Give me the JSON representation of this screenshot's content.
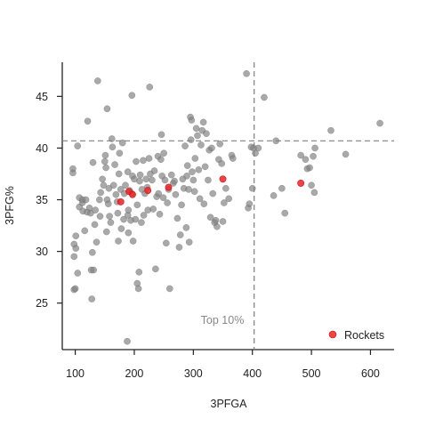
{
  "chart_data": {
    "type": "scatter",
    "xlabel": "3PFGA",
    "ylabel": "3PFG%",
    "xlim": [
      78,
      640
    ],
    "ylim": [
      20.5,
      48.3
    ],
    "xticks": [
      100,
      200,
      300,
      400,
      500,
      600
    ],
    "yticks": [
      25,
      30,
      35,
      40,
      45
    ],
    "grid": false,
    "reference_lines": {
      "x": 403,
      "y": 40.7
    },
    "annotation": "Top 10%",
    "legend": {
      "position": "bottom-right",
      "entries": [
        "Rockets"
      ]
    },
    "colors": {
      "others": "#808080",
      "highlight": "#ee2222",
      "refline": "#808080"
    },
    "series": [
      {
        "values": [
          [
            96,
            37.6
          ],
          [
            96,
            38.0
          ],
          [
            98,
            30.7
          ],
          [
            98,
            29.5
          ],
          [
            98,
            26.3
          ],
          [
            100,
            26.4
          ],
          [
            101,
            30.3
          ],
          [
            101,
            31.5
          ],
          [
            104,
            27.9
          ],
          [
            104,
            40.2
          ],
          [
            107,
            34.3
          ],
          [
            107,
            35.2
          ],
          [
            112,
            34.7
          ],
          [
            112,
            35.0
          ],
          [
            113,
            33.9
          ],
          [
            116,
            32.0
          ],
          [
            118,
            35.0
          ],
          [
            120,
            33.8
          ],
          [
            121,
            42.6
          ],
          [
            124,
            34.2
          ],
          [
            126,
            33.7
          ],
          [
            127,
            28.2
          ],
          [
            128,
            25.4
          ],
          [
            129,
            29.9
          ],
          [
            130,
            38.6
          ],
          [
            131,
            28.2
          ],
          [
            133,
            32.6
          ],
          [
            134,
            34.0
          ],
          [
            136,
            30.9
          ],
          [
            138,
            46.5
          ],
          [
            141,
            35.0
          ],
          [
            142,
            33.4
          ],
          [
            143,
            35.7
          ],
          [
            146,
            37.0
          ],
          [
            148,
            36.4
          ],
          [
            150,
            38.7
          ],
          [
            151,
            39.3
          ],
          [
            152,
            38.1
          ],
          [
            153,
            31.9
          ],
          [
            154,
            35.0
          ],
          [
            154,
            43.8
          ],
          [
            156,
            34.6
          ],
          [
            157,
            36.1
          ],
          [
            158,
            33.4
          ],
          [
            160,
            32.8
          ],
          [
            162,
            40.9
          ],
          [
            163,
            40.1
          ],
          [
            165,
            36.4
          ],
          [
            167,
            38.4
          ],
          [
            169,
            35.5
          ],
          [
            171,
            34.8
          ],
          [
            172,
            33.7
          ],
          [
            173,
            31.0
          ],
          [
            174,
            37.5
          ],
          [
            175,
            39.5
          ],
          [
            177,
            36.0
          ],
          [
            178,
            32.2
          ],
          [
            180,
            40.5
          ],
          [
            182,
            33.1
          ],
          [
            183,
            35.6
          ],
          [
            185,
            36.4
          ],
          [
            188,
            21.3
          ],
          [
            189,
            37.7
          ],
          [
            189,
            33.5
          ],
          [
            190,
            34.0
          ],
          [
            190,
            31.8
          ],
          [
            192,
            35.9
          ],
          [
            194,
            33.0
          ],
          [
            196,
            45.1
          ],
          [
            196,
            35.6
          ],
          [
            197,
            37.3
          ],
          [
            198,
            31.0
          ],
          [
            200,
            37.0
          ],
          [
            202,
            33.1
          ],
          [
            203,
            38.7
          ],
          [
            205,
            34.5
          ],
          [
            205,
            26.9
          ],
          [
            207,
            26.4
          ],
          [
            208,
            28.0
          ],
          [
            209,
            36.8
          ],
          [
            210,
            37.4
          ],
          [
            212,
            32.8
          ],
          [
            213,
            36.0
          ],
          [
            215,
            38.8
          ],
          [
            216,
            33.5
          ],
          [
            218,
            35.6
          ],
          [
            220,
            37.0
          ],
          [
            222,
            36.2
          ],
          [
            223,
            34.0
          ],
          [
            225,
            39.0
          ],
          [
            226,
            45.9
          ],
          [
            227,
            37.5
          ],
          [
            230,
            36.9
          ],
          [
            232,
            34.1
          ],
          [
            234,
            37.8
          ],
          [
            236,
            28.3
          ],
          [
            238,
            35.3
          ],
          [
            240,
            39.2
          ],
          [
            241,
            35.6
          ],
          [
            243,
            33.6
          ],
          [
            245,
            38.9
          ],
          [
            246,
            41.3
          ],
          [
            247,
            37.3
          ],
          [
            249,
            35.2
          ],
          [
            250,
            39.5
          ],
          [
            252,
            36.9
          ],
          [
            254,
            30.8
          ],
          [
            256,
            34.7
          ],
          [
            258,
            36.0
          ],
          [
            260,
            26.4
          ],
          [
            263,
            37.4
          ],
          [
            266,
            36.6
          ],
          [
            268,
            36.8
          ],
          [
            270,
            35.5
          ],
          [
            273,
            33.2
          ],
          [
            276,
            30.4
          ],
          [
            278,
            31.6
          ],
          [
            280,
            34.5
          ],
          [
            282,
            37.0
          ],
          [
            284,
            36.1
          ],
          [
            286,
            40.2
          ],
          [
            288,
            32.3
          ],
          [
            289,
            37.3
          ],
          [
            290,
            38.3
          ],
          [
            292,
            36.0
          ],
          [
            293,
            30.9
          ],
          [
            295,
            43.0
          ],
          [
            296,
            40.8
          ],
          [
            297,
            42.7
          ],
          [
            298,
            37.7
          ],
          [
            300,
            36.9
          ],
          [
            302,
            35.8
          ],
          [
            303,
            39.0
          ],
          [
            305,
            41.9
          ],
          [
            307,
            41.2
          ],
          [
            309,
            37.9
          ],
          [
            311,
            35.1
          ],
          [
            313,
            40.3
          ],
          [
            315,
            41.7
          ],
          [
            317,
            42.5
          ],
          [
            318,
            34.6
          ],
          [
            320,
            38.2
          ],
          [
            322,
            41.4
          ],
          [
            325,
            36.9
          ],
          [
            327,
            39.8
          ],
          [
            329,
            33.3
          ],
          [
            331,
            40.0
          ],
          [
            333,
            35.6
          ],
          [
            336,
            32.8
          ],
          [
            338,
            33.0
          ],
          [
            340,
            32.4
          ],
          [
            343,
            38.9
          ],
          [
            345,
            40.4
          ],
          [
            348,
            38.5
          ],
          [
            350,
            32.9
          ],
          [
            352,
            34.7
          ],
          [
            355,
            36.1
          ],
          [
            360,
            35.1
          ],
          [
            365,
            39.3
          ],
          [
            367,
            39.0
          ],
          [
            390,
            47.2
          ],
          [
            393,
            34.2
          ],
          [
            395,
            34.6
          ],
          [
            398,
            40.1
          ],
          [
            400,
            36.1
          ],
          [
            402,
            40.0
          ],
          [
            405,
            39.5
          ],
          [
            410,
            40.0
          ],
          [
            420,
            44.9
          ],
          [
            436,
            35.4
          ],
          [
            440,
            40.7
          ],
          [
            450,
            36.1
          ],
          [
            455,
            33.7
          ],
          [
            482,
            39.3
          ],
          [
            490,
            38.9
          ],
          [
            493,
            38.0
          ],
          [
            497,
            38.1
          ],
          [
            500,
            36.4
          ],
          [
            503,
            39.2
          ],
          [
            505,
            35.7
          ],
          [
            506,
            40.0
          ],
          [
            533,
            41.7
          ],
          [
            558,
            39.4
          ],
          [
            616,
            42.4
          ]
        ]
      },
      {
        "name": "Rockets",
        "values": [
          [
            177,
            34.8
          ],
          [
            191,
            35.8
          ],
          [
            197,
            35.5
          ],
          [
            223,
            35.9
          ],
          [
            258,
            36.2
          ],
          [
            350,
            37.0
          ],
          [
            482,
            36.6
          ]
        ]
      }
    ]
  }
}
